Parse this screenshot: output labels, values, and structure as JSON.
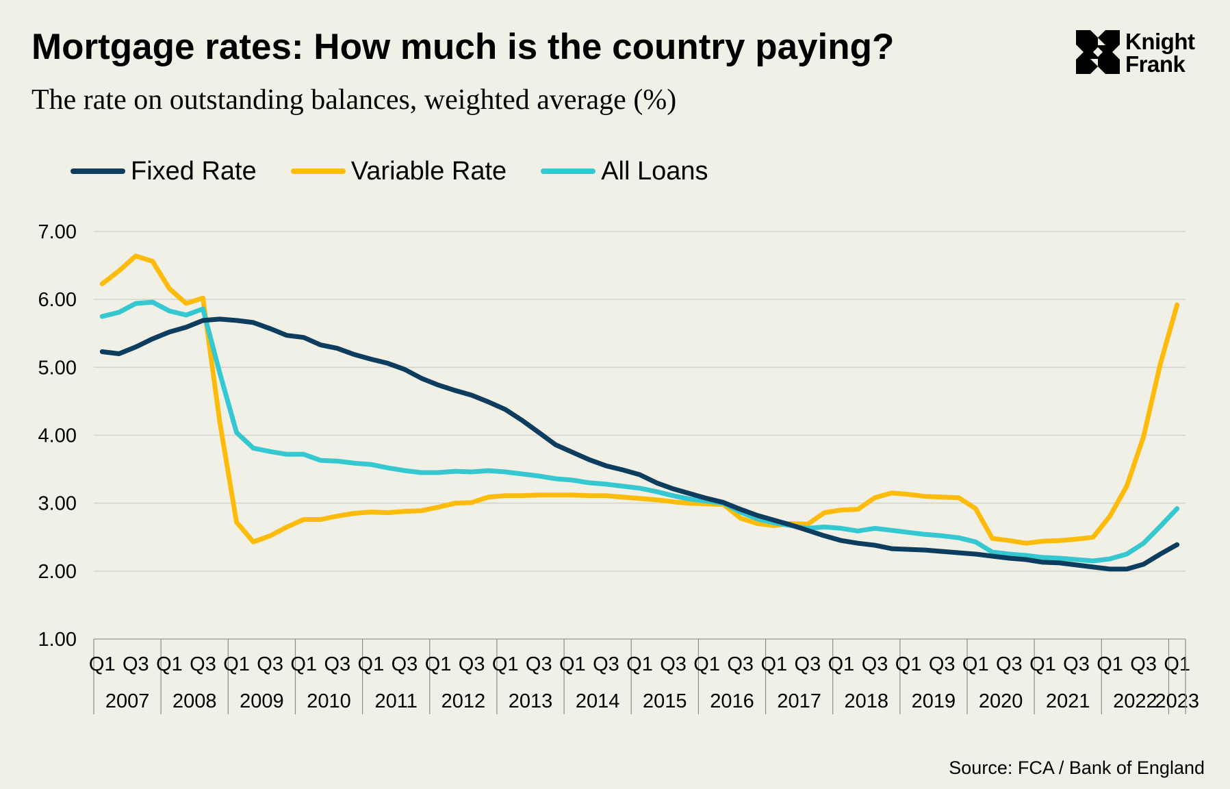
{
  "header": {
    "title": "Mortgage rates: How much is the country paying?",
    "subtitle": "The rate on outstanding balances, weighted average (%)"
  },
  "logo": {
    "line1": "Knight",
    "line2": "Frank",
    "icon": "knight-frank-logo-icon"
  },
  "footer": {
    "source": "Source: FCA / Bank of England"
  },
  "colors": {
    "background": "#f1f0e6",
    "fixed": "#0d3d5e",
    "variable": "#fdbb0c",
    "all": "#35c8d0",
    "grid": "#d3d3cc"
  },
  "chart_data": {
    "type": "line",
    "title": "Mortgage rates: How much is the country paying?",
    "subtitle": "The rate on outstanding balances, weighted average (%)",
    "xlabel": "",
    "ylabel": "",
    "ylim": [
      1.0,
      7.0
    ],
    "yticks": [
      1.0,
      2.0,
      3.0,
      4.0,
      5.0,
      6.0,
      7.0
    ],
    "ytick_labels": [
      "1.00",
      "2.00",
      "3.00",
      "4.00",
      "5.00",
      "6.00",
      "7.00"
    ],
    "grid": true,
    "legend_position": "top-left",
    "x_quarter_labels": [
      "Q1",
      "Q3"
    ],
    "years": [
      "2007",
      "2008",
      "2009",
      "2010",
      "2011",
      "2012",
      "2013",
      "2014",
      "2015",
      "2016",
      "2017",
      "2018",
      "2019",
      "2020",
      "2021",
      "2022",
      "2023"
    ],
    "quarters": [
      "2007 Q1",
      "2007 Q2",
      "2007 Q3",
      "2007 Q4",
      "2008 Q1",
      "2008 Q2",
      "2008 Q3",
      "2008 Q4",
      "2009 Q1",
      "2009 Q2",
      "2009 Q3",
      "2009 Q4",
      "2010 Q1",
      "2010 Q2",
      "2010 Q3",
      "2010 Q4",
      "2011 Q1",
      "2011 Q2",
      "2011 Q3",
      "2011 Q4",
      "2012 Q1",
      "2012 Q2",
      "2012 Q3",
      "2012 Q4",
      "2013 Q1",
      "2013 Q2",
      "2013 Q3",
      "2013 Q4",
      "2014 Q1",
      "2014 Q2",
      "2014 Q3",
      "2014 Q4",
      "2015 Q1",
      "2015 Q2",
      "2015 Q3",
      "2015 Q4",
      "2016 Q1",
      "2016 Q2",
      "2016 Q3",
      "2016 Q4",
      "2017 Q1",
      "2017 Q2",
      "2017 Q3",
      "2017 Q4",
      "2018 Q1",
      "2018 Q2",
      "2018 Q3",
      "2018 Q4",
      "2019 Q1",
      "2019 Q2",
      "2019 Q3",
      "2019 Q4",
      "2020 Q1",
      "2020 Q2",
      "2020 Q3",
      "2020 Q4",
      "2021 Q1",
      "2021 Q2",
      "2021 Q3",
      "2021 Q4",
      "2022 Q1",
      "2022 Q2",
      "2022 Q3",
      "2022 Q4",
      "2023 Q1"
    ],
    "series": [
      {
        "name": "Fixed Rate",
        "color_key": "fixed",
        "values": [
          5.23,
          5.2,
          5.3,
          5.42,
          5.52,
          5.59,
          5.69,
          5.71,
          5.69,
          5.66,
          5.57,
          5.47,
          5.44,
          5.33,
          5.28,
          5.19,
          5.12,
          5.06,
          4.97,
          4.84,
          4.74,
          4.66,
          4.59,
          4.49,
          4.38,
          4.22,
          4.04,
          3.86,
          3.75,
          3.64,
          3.55,
          3.49,
          3.42,
          3.3,
          3.21,
          3.14,
          3.07,
          3.01,
          2.91,
          2.82,
          2.75,
          2.68,
          2.6,
          2.52,
          2.45,
          2.41,
          2.38,
          2.33,
          2.32,
          2.31,
          2.29,
          2.27,
          2.25,
          2.22,
          2.19,
          2.17,
          2.13,
          2.12,
          2.09,
          2.06,
          2.03,
          2.03,
          2.1,
          2.25,
          2.39
        ]
      },
      {
        "name": "Variable Rate",
        "color_key": "variable",
        "values": [
          6.23,
          6.42,
          6.64,
          6.56,
          6.16,
          5.94,
          6.02,
          4.2,
          2.72,
          2.43,
          2.52,
          2.65,
          2.76,
          2.76,
          2.81,
          2.85,
          2.87,
          2.86,
          2.88,
          2.89,
          2.94,
          3.0,
          3.01,
          3.09,
          3.11,
          3.11,
          3.12,
          3.12,
          3.12,
          3.11,
          3.11,
          3.09,
          3.07,
          3.05,
          3.02,
          3.0,
          2.99,
          2.98,
          2.78,
          2.7,
          2.67,
          2.7,
          2.69,
          2.86,
          2.9,
          2.91,
          3.08,
          3.15,
          3.13,
          3.1,
          3.09,
          3.08,
          2.92,
          2.48,
          2.45,
          2.41,
          2.44,
          2.45,
          2.47,
          2.5,
          2.81,
          3.25,
          3.98,
          5.05,
          5.92
        ]
      },
      {
        "name": "All Loans",
        "color_key": "all",
        "values": [
          5.75,
          5.81,
          5.94,
          5.96,
          5.83,
          5.77,
          5.86,
          4.92,
          4.04,
          3.81,
          3.76,
          3.72,
          3.72,
          3.63,
          3.62,
          3.59,
          3.57,
          3.52,
          3.48,
          3.45,
          3.45,
          3.47,
          3.46,
          3.48,
          3.46,
          3.43,
          3.4,
          3.36,
          3.34,
          3.3,
          3.28,
          3.25,
          3.22,
          3.17,
          3.11,
          3.06,
          3.03,
          3.0,
          2.87,
          2.77,
          2.71,
          2.67,
          2.63,
          2.65,
          2.63,
          2.59,
          2.63,
          2.6,
          2.57,
          2.54,
          2.52,
          2.49,
          2.43,
          2.28,
          2.25,
          2.23,
          2.2,
          2.19,
          2.17,
          2.15,
          2.18,
          2.25,
          2.41,
          2.66,
          2.92
        ]
      }
    ]
  }
}
